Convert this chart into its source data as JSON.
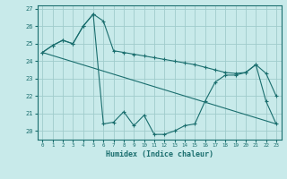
{
  "xlabel": "Humidex (Indice chaleur)",
  "background_color": "#c8eaea",
  "grid_color": "#a0cccc",
  "line_color": "#1a6e6e",
  "xlim": [
    -0.5,
    23.5
  ],
  "ylim": [
    19.5,
    27.2
  ],
  "yticks": [
    20,
    21,
    22,
    23,
    24,
    25,
    26,
    27
  ],
  "xticks": [
    0,
    1,
    2,
    3,
    4,
    5,
    6,
    7,
    8,
    9,
    10,
    11,
    12,
    13,
    14,
    15,
    16,
    17,
    18,
    19,
    20,
    21,
    22,
    23
  ],
  "line1_x": [
    0,
    1,
    2,
    3,
    4,
    5,
    6,
    7,
    8,
    9,
    10,
    11,
    12,
    13,
    14,
    15,
    16,
    17,
    18,
    19,
    20,
    21,
    22,
    23
  ],
  "line1_y": [
    24.5,
    24.9,
    25.2,
    25.0,
    26.0,
    26.7,
    26.3,
    24.6,
    24.5,
    24.4,
    24.3,
    24.2,
    24.1,
    24.0,
    23.9,
    23.8,
    23.65,
    23.5,
    23.35,
    23.3,
    23.35,
    23.8,
    23.3,
    22.0
  ],
  "line2_x": [
    0,
    1,
    2,
    3,
    4,
    5,
    6,
    7,
    8,
    9,
    10,
    11,
    12,
    13,
    14,
    15,
    16,
    17,
    18,
    19,
    20,
    21,
    22,
    23
  ],
  "line2_y": [
    24.5,
    24.9,
    25.2,
    25.0,
    26.0,
    26.7,
    20.4,
    20.5,
    21.1,
    20.3,
    20.9,
    19.8,
    19.8,
    20.0,
    20.3,
    20.4,
    21.7,
    22.8,
    23.2,
    23.2,
    23.35,
    23.8,
    21.7,
    20.4
  ],
  "line3_x": [
    0,
    23
  ],
  "line3_y": [
    24.5,
    20.4
  ]
}
